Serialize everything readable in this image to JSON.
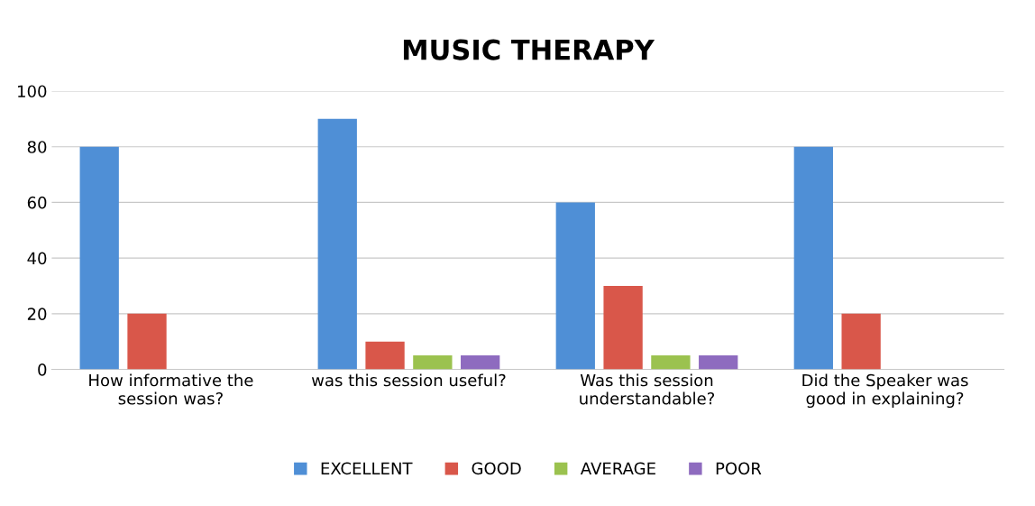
{
  "chart_data": {
    "type": "bar",
    "title": "MUSIC THERAPY",
    "categories": [
      "How informative the\nsession was?",
      "was this session useful?",
      "Was this session\nunderstandable?",
      "Did the Speaker was\ngood in explaining?"
    ],
    "series": [
      {
        "name": "EXCELLENT",
        "color": "#4f8fd6",
        "values": [
          80,
          90,
          60,
          80
        ]
      },
      {
        "name": "GOOD",
        "color": "#d9574a",
        "values": [
          20,
          10,
          30,
          20
        ]
      },
      {
        "name": "AVERAGE",
        "color": "#9bc24f",
        "values": [
          0,
          5,
          5,
          0
        ]
      },
      {
        "name": "POOR",
        "color": "#8e6bbf",
        "values": [
          0,
          5,
          5,
          0
        ]
      }
    ],
    "ylim": [
      0,
      100
    ],
    "yticks": [
      0,
      20,
      40,
      60,
      80,
      100
    ],
    "grid": "y",
    "legend": "bottom"
  }
}
